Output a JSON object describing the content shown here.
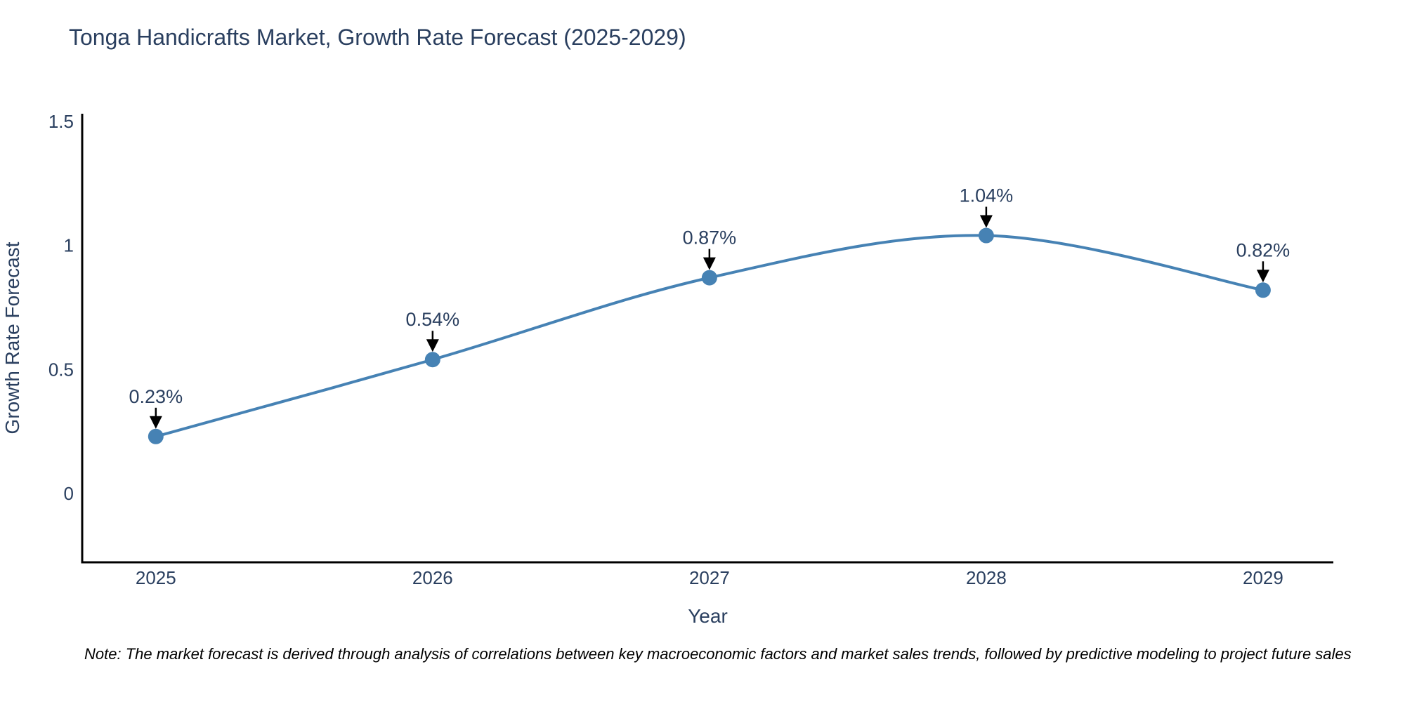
{
  "page": {
    "background": "#ffffff"
  },
  "note": {
    "text": "Note: The market forecast is derived through analysis of correlations between key macroeconomic factors and market sales trends, followed by predictive modeling to project future sales"
  },
  "chart_data": {
    "type": "line",
    "line_shape": "spline",
    "title": "Tonga Handicrafts Market, Growth Rate Forecast (2025-2029)",
    "xlabel": "Year",
    "ylabel": "Growth Rate Forecast",
    "x": [
      2025,
      2026,
      2027,
      2028,
      2029
    ],
    "categories": [
      "2025",
      "2026",
      "2027",
      "2028",
      "2029"
    ],
    "values": [
      0.23,
      0.54,
      0.87,
      1.04,
      0.82
    ],
    "point_labels": [
      "0.23%",
      "0.54%",
      "0.87%",
      "1.04%",
      "0.82%"
    ],
    "yticks": [
      0,
      0.5,
      1,
      1.5
    ],
    "ytick_labels": [
      "0",
      "0.5",
      "1",
      "1.5"
    ],
    "ylim": [
      -0.277,
      1.531
    ],
    "xlim": [
      2024.734,
      2029.254
    ],
    "grid": false,
    "legend": false,
    "line_color": "#4682b4",
    "marker_color": "#4682b4",
    "text_color": "#2a3f5f",
    "axis_color": "#000000",
    "annotation_arrow_color": "#000000"
  }
}
